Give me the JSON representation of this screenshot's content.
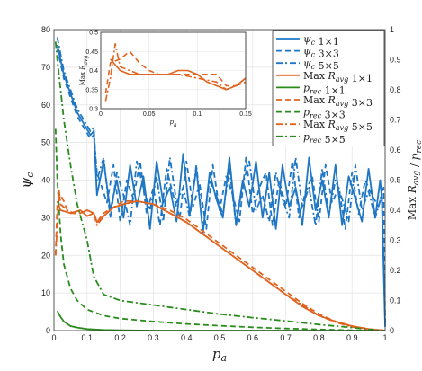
{
  "chart_data": {
    "type": "line",
    "xlabel": "p_a",
    "ylabel_left": "ψ_c",
    "ylabel_right": "Max R_avg / p_rec",
    "xlim": [
      0,
      1
    ],
    "ylim_left": [
      0,
      80
    ],
    "ylim_right": [
      0,
      1
    ],
    "grid": true,
    "legend_placement": "top-right",
    "xticks": [
      "0",
      "0.1",
      "0.2",
      "0.3",
      "0.4",
      "0.5",
      "0.6",
      "0.7",
      "0.8",
      "0.9",
      "1"
    ],
    "yticks_left": [
      "0",
      "10",
      "20",
      "30",
      "40",
      "50",
      "60",
      "70",
      "80"
    ],
    "yticks_right": [
      "0",
      "0.1",
      "0.2",
      "0.3",
      "0.4",
      "0.5",
      "0.6",
      "0.7",
      "0.8",
      "0.9",
      "1"
    ],
    "colors": {
      "psi": "#1f77c4",
      "maxr": "#e06420",
      "prec": "#2a8c1e"
    },
    "legend": [
      {
        "label": "ψ_c 1×1",
        "color": "#1f77c4",
        "dash": "solid"
      },
      {
        "label": "ψ_c 3×3",
        "color": "#1f77c4",
        "dash": "dashed"
      },
      {
        "label": "ψ_c 5×5",
        "color": "#1f77c4",
        "dash": "dashdot"
      },
      {
        "label": "Max R_avg 1×1",
        "color": "#e06420",
        "dash": "solid"
      },
      {
        "label": "p_rec 1×1",
        "color": "#2a8c1e",
        "dash": "solid"
      },
      {
        "label": "Max R_avg 3×3",
        "color": "#e06420",
        "dash": "dashed"
      },
      {
        "label": "p_rec 3×3",
        "color": "#2a8c1e",
        "dash": "dashed"
      },
      {
        "label": "Max R_avg 5×5",
        "color": "#e06420",
        "dash": "dashdot"
      },
      {
        "label": "p_rec 5×5",
        "color": "#2a8c1e",
        "dash": "dashdot"
      }
    ],
    "series": [
      {
        "name": "ψ_c 1×1",
        "axis": "left",
        "color": "#1f77c4",
        "dash": "solid",
        "x": [
          0.01,
          0.03,
          0.05,
          0.07,
          0.09,
          0.11,
          0.12,
          0.13,
          0.15,
          0.17,
          0.19,
          0.21,
          0.23,
          0.25,
          0.27,
          0.29,
          0.31,
          0.33,
          0.35,
          0.37,
          0.39,
          0.41,
          0.43,
          0.45,
          0.47,
          0.49,
          0.51,
          0.53,
          0.55,
          0.57,
          0.59,
          0.61,
          0.63,
          0.65,
          0.67,
          0.69,
          0.71,
          0.73,
          0.75,
          0.77,
          0.79,
          0.81,
          0.83,
          0.85,
          0.87,
          0.89,
          0.91,
          0.93,
          0.95,
          0.97,
          0.985,
          0.99,
          1.0
        ],
        "y": [
          76,
          68,
          63,
          58,
          55,
          52,
          53,
          36,
          45,
          32,
          40,
          30,
          44,
          33,
          41,
          27,
          45,
          34,
          38,
          29,
          47,
          31,
          43,
          26,
          42,
          35,
          30,
          46,
          28,
          40,
          33,
          45,
          30,
          42,
          27,
          44,
          33,
          38,
          28,
          46,
          32,
          40,
          30,
          44,
          28,
          41,
          35,
          29,
          43,
          30,
          40,
          35,
          1
        ]
      },
      {
        "name": "ψ_c 3×3",
        "axis": "left",
        "color": "#1f77c4",
        "dash": "dashed",
        "x": [
          0.01,
          0.03,
          0.05,
          0.07,
          0.09,
          0.11,
          0.12,
          0.13,
          0.16,
          0.18,
          0.2,
          0.22,
          0.24,
          0.26,
          0.28,
          0.3,
          0.32,
          0.34,
          0.36,
          0.38,
          0.4,
          0.42,
          0.44,
          0.46,
          0.48,
          0.5,
          0.52,
          0.54,
          0.56,
          0.58,
          0.6,
          0.62,
          0.64,
          0.66,
          0.68,
          0.7,
          0.72,
          0.74,
          0.76,
          0.78,
          0.8,
          0.82,
          0.84,
          0.86,
          0.88,
          0.9,
          0.92,
          0.94,
          0.96,
          0.98,
          0.995,
          1.0
        ],
        "y": [
          75,
          67,
          62,
          57,
          54,
          51,
          52,
          42,
          34,
          44,
          29,
          40,
          35,
          45,
          31,
          38,
          28,
          43,
          36,
          30,
          45,
          33,
          39,
          27,
          44,
          32,
          41,
          36,
          29,
          46,
          31,
          38,
          42,
          28,
          40,
          33,
          45,
          30,
          37,
          41,
          29,
          44,
          34,
          38,
          27,
          42,
          31,
          40,
          36,
          33,
          38,
          2
        ]
      },
      {
        "name": "ψ_c 5×5",
        "axis": "left",
        "color": "#1f77c4",
        "dash": "dashdot",
        "x": [
          0.01,
          0.03,
          0.05,
          0.07,
          0.09,
          0.11,
          0.12,
          0.13,
          0.15,
          0.17,
          0.19,
          0.21,
          0.23,
          0.25,
          0.27,
          0.29,
          0.31,
          0.33,
          0.35,
          0.37,
          0.39,
          0.41,
          0.43,
          0.45,
          0.47,
          0.49,
          0.51,
          0.53,
          0.55,
          0.57,
          0.59,
          0.61,
          0.63,
          0.65,
          0.67,
          0.69,
          0.71,
          0.73,
          0.75,
          0.77,
          0.79,
          0.81,
          0.83,
          0.85,
          0.87,
          0.89,
          0.91,
          0.93,
          0.95,
          0.97,
          0.99,
          1.0
        ],
        "y": [
          78,
          69,
          64,
          59,
          56,
          53,
          54,
          40,
          46,
          30,
          42,
          36,
          28,
          45,
          38,
          32,
          41,
          29,
          46,
          34,
          38,
          30,
          44,
          27,
          40,
          36,
          31,
          43,
          28,
          39,
          45,
          32,
          36,
          29,
          42,
          35,
          30,
          46,
          33,
          38,
          28,
          43,
          31,
          40,
          35,
          29,
          44,
          32,
          37,
          30,
          36,
          3
        ]
      },
      {
        "name": "Max R_avg 1×1",
        "axis": "right",
        "color": "#e06420",
        "dash": "solid",
        "x": [
          0.01,
          0.02,
          0.05,
          0.08,
          0.1,
          0.12,
          0.13,
          0.15,
          0.18,
          0.21,
          0.25,
          0.3,
          0.35,
          0.4,
          0.45,
          0.5,
          0.55,
          0.6,
          0.65,
          0.7,
          0.75,
          0.8,
          0.85,
          0.9,
          0.95,
          1.0
        ],
        "y": [
          0.43,
          0.4,
          0.39,
          0.4,
          0.38,
          0.39,
          0.36,
          0.38,
          0.41,
          0.42,
          0.43,
          0.42,
          0.39,
          0.36,
          0.32,
          0.28,
          0.24,
          0.2,
          0.16,
          0.12,
          0.08,
          0.05,
          0.03,
          0.015,
          0.005,
          0.0
        ]
      },
      {
        "name": "p_rec 1×1",
        "axis": "right",
        "color": "#2a8c1e",
        "dash": "solid",
        "x": [
          0.01,
          0.02,
          0.03,
          0.05,
          0.07,
          0.1,
          0.15,
          0.2,
          0.3,
          0.4,
          0.5,
          0.6,
          0.7,
          0.8,
          0.9,
          1.0
        ],
        "y": [
          0.065,
          0.045,
          0.03,
          0.015,
          0.01,
          0.005,
          0.002,
          0.001,
          0.0,
          0.0,
          0.0,
          0.0,
          0.0,
          0.0,
          0.0,
          0.0
        ]
      },
      {
        "name": "Max R_avg 3×3",
        "axis": "right",
        "color": "#e06420",
        "dash": "dashed",
        "x": [
          0.005,
          0.01,
          0.02,
          0.03,
          0.04,
          0.06,
          0.08,
          0.1,
          0.12,
          0.13,
          0.15,
          0.18,
          0.21,
          0.25,
          0.3,
          0.35,
          0.4,
          0.45,
          0.5,
          0.55,
          0.6,
          0.65,
          0.7,
          0.75,
          0.8,
          0.85,
          0.9,
          0.95,
          1.0
        ],
        "y": [
          0.25,
          0.42,
          0.45,
          0.43,
          0.4,
          0.39,
          0.39,
          0.4,
          0.39,
          0.36,
          0.39,
          0.41,
          0.43,
          0.43,
          0.42,
          0.4,
          0.37,
          0.33,
          0.29,
          0.25,
          0.21,
          0.17,
          0.13,
          0.09,
          0.055,
          0.03,
          0.015,
          0.005,
          0.0
        ]
      },
      {
        "name": "p_rec 3×3",
        "axis": "right",
        "color": "#2a8c1e",
        "dash": "dashed",
        "x": [
          0.005,
          0.01,
          0.02,
          0.03,
          0.05,
          0.07,
          0.1,
          0.15,
          0.2,
          0.3,
          0.4,
          0.5,
          0.6,
          0.7,
          0.8,
          0.9,
          1.0
        ],
        "y": [
          0.67,
          0.5,
          0.32,
          0.22,
          0.14,
          0.1,
          0.07,
          0.05,
          0.04,
          0.03,
          0.022,
          0.016,
          0.011,
          0.007,
          0.004,
          0.001,
          0.0
        ]
      },
      {
        "name": "Max R_avg 5×5",
        "axis": "right",
        "color": "#e06420",
        "dash": "dashdot",
        "x": [
          0.005,
          0.01,
          0.015,
          0.02,
          0.03,
          0.04,
          0.05,
          0.08,
          0.1,
          0.12,
          0.13,
          0.15,
          0.18,
          0.21,
          0.25,
          0.3,
          0.35,
          0.4,
          0.45,
          0.5,
          0.55,
          0.6,
          0.65,
          0.7,
          0.75,
          0.8,
          0.85,
          0.9,
          0.95,
          1.0
        ],
        "y": [
          0.25,
          0.35,
          0.47,
          0.42,
          0.41,
          0.4,
          0.39,
          0.39,
          0.4,
          0.39,
          0.35,
          0.38,
          0.41,
          0.42,
          0.43,
          0.42,
          0.39,
          0.36,
          0.32,
          0.28,
          0.24,
          0.2,
          0.16,
          0.12,
          0.085,
          0.05,
          0.028,
          0.012,
          0.004,
          0.0
        ]
      },
      {
        "name": "p_rec 5×5",
        "axis": "right",
        "color": "#2a8c1e",
        "dash": "dashdot",
        "x": [
          0.005,
          0.01,
          0.02,
          0.03,
          0.05,
          0.07,
          0.1,
          0.12,
          0.15,
          0.2,
          0.3,
          0.4,
          0.5,
          0.6,
          0.7,
          0.8,
          0.9,
          0.95,
          1.0
        ],
        "y": [
          0.96,
          0.9,
          0.8,
          0.7,
          0.55,
          0.42,
          0.3,
          0.18,
          0.12,
          0.1,
          0.085,
          0.07,
          0.055,
          0.043,
          0.032,
          0.02,
          0.01,
          0.004,
          0.0
        ]
      }
    ],
    "inset": {
      "xlabel": "p_a",
      "ylabel": "Max R_avg",
      "xlim": [
        0,
        0.15
      ],
      "ylim": [
        0.3,
        0.5
      ],
      "xticks": [
        "0",
        "0.05",
        "0.1",
        "0.15"
      ],
      "yticks": [
        "0.3",
        "0.35",
        "0.4",
        "0.45",
        "0.5"
      ],
      "series": [
        {
          "name": "Max R_avg 1×1",
          "color": "#e06420",
          "dash": "solid",
          "x": [
            0.01,
            0.02,
            0.03,
            0.04,
            0.05,
            0.06,
            0.07,
            0.08,
            0.09,
            0.1,
            0.11,
            0.12,
            0.13,
            0.14,
            0.15
          ],
          "y": [
            0.43,
            0.4,
            0.39,
            0.39,
            0.39,
            0.39,
            0.39,
            0.4,
            0.4,
            0.39,
            0.37,
            0.36,
            0.35,
            0.36,
            0.38
          ]
        },
        {
          "name": "Max R_avg 3×3",
          "color": "#e06420",
          "dash": "dashed",
          "x": [
            0.005,
            0.01,
            0.02,
            0.03,
            0.04,
            0.05,
            0.06,
            0.08,
            0.1,
            0.12,
            0.13,
            0.14,
            0.15
          ],
          "y": [
            0.34,
            0.42,
            0.43,
            0.45,
            0.42,
            0.4,
            0.39,
            0.39,
            0.39,
            0.39,
            0.36,
            0.36,
            0.38
          ]
        },
        {
          "name": "Max R_avg 5×5",
          "color": "#e06420",
          "dash": "dashdot",
          "x": [
            0.005,
            0.01,
            0.015,
            0.02,
            0.03,
            0.04,
            0.05,
            0.06,
            0.08,
            0.1,
            0.12,
            0.13,
            0.14,
            0.15
          ],
          "y": [
            0.32,
            0.38,
            0.47,
            0.41,
            0.4,
            0.39,
            0.39,
            0.39,
            0.39,
            0.38,
            0.37,
            0.35,
            0.36,
            0.37
          ]
        }
      ]
    }
  }
}
